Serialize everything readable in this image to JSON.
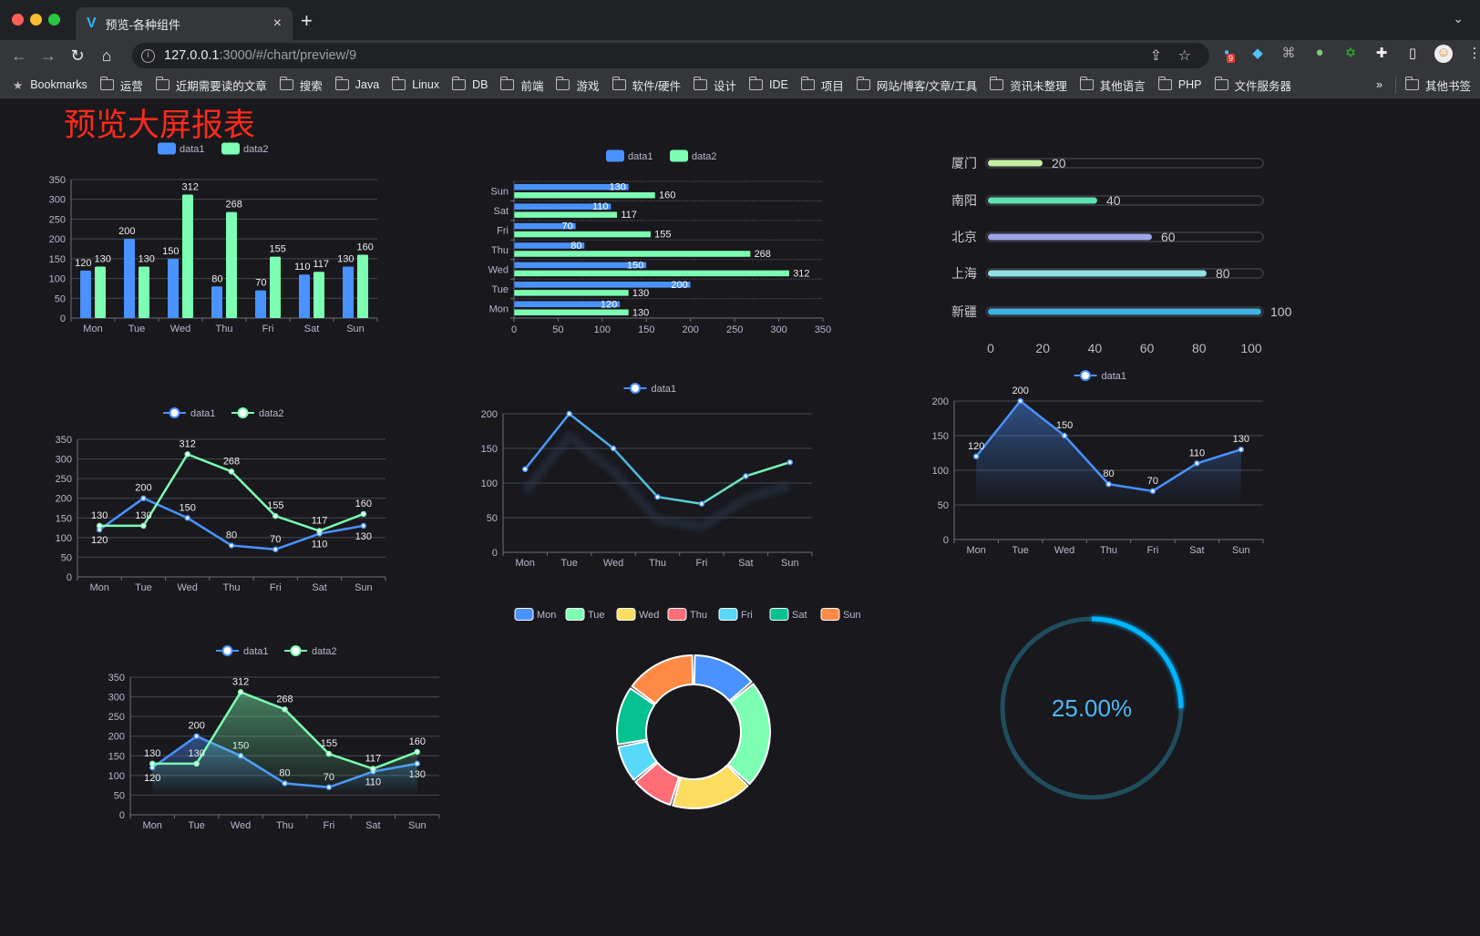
{
  "browser": {
    "tab_title": "预览-各种组件",
    "tab_close": "×",
    "new_tab": "+",
    "url_host": "127.0.0.1",
    "url_rest": ":3000/#/chart/preview/9",
    "extension_badge": "9",
    "bookmarks_label": "Bookmarks",
    "bookmarks": [
      "运营",
      "近期需要读的文章",
      "搜索",
      "Java",
      "Linux",
      "DB",
      "前端",
      "游戏",
      "软件/硬件",
      "设计",
      "IDE",
      "项目",
      "网站/博客/文章/工具",
      "资讯未整理",
      "其他语言",
      "PHP",
      "文件服务器"
    ],
    "overflow": "»",
    "other_bookmarks": "其他书签"
  },
  "page": {
    "title": "预览大屏报表"
  },
  "colors": {
    "data1": "#4992ff",
    "data2": "#7cffb2",
    "title": "#ff2a1a",
    "gauge": "#00b4ff"
  },
  "chart_data": [
    {
      "type": "bar",
      "categories": [
        "Mon",
        "Tue",
        "Wed",
        "Thu",
        "Fri",
        "Sat",
        "Sun"
      ],
      "ylim": [
        0,
        350
      ],
      "yticks": [
        0,
        50,
        100,
        150,
        200,
        250,
        300,
        350
      ],
      "legend": "top-center",
      "grid": true,
      "series": [
        {
          "name": "data1",
          "values": [
            120,
            200,
            150,
            80,
            70,
            110,
            130
          ]
        },
        {
          "name": "data2",
          "values": [
            130,
            130,
            312,
            268,
            155,
            117,
            160
          ]
        }
      ]
    },
    {
      "type": "bar",
      "orientation": "horizontal",
      "categories": [
        "Mon",
        "Tue",
        "Wed",
        "Thu",
        "Fri",
        "Sat",
        "Sun"
      ],
      "xlim": [
        0,
        350
      ],
      "xticks": [
        0,
        50,
        100,
        150,
        200,
        250,
        300,
        350
      ],
      "legend": "top-center",
      "grid": true,
      "series": [
        {
          "name": "data1",
          "values": [
            120,
            200,
            150,
            80,
            70,
            110,
            130
          ]
        },
        {
          "name": "data2",
          "values": [
            130,
            130,
            312,
            268,
            155,
            117,
            160
          ]
        }
      ]
    },
    {
      "type": "bar",
      "style": "progress",
      "categories": [
        "厦门",
        "南阳",
        "北京",
        "上海",
        "新疆"
      ],
      "values": [
        20,
        40,
        60,
        80,
        100
      ],
      "xlim": [
        0,
        100
      ],
      "xticks": [
        0,
        20,
        40,
        60,
        80,
        100
      ],
      "colors": [
        "#c5f0a4",
        "#5ee0b0",
        "#9da5e8",
        "#90e0e8",
        "#3fb1e3"
      ]
    },
    {
      "type": "line",
      "categories": [
        "Mon",
        "Tue",
        "Wed",
        "Thu",
        "Fri",
        "Sat",
        "Sun"
      ],
      "ylim": [
        0,
        350
      ],
      "yticks": [
        0,
        50,
        100,
        150,
        200,
        250,
        300,
        350
      ],
      "legend": "top-center",
      "labels": true,
      "series": [
        {
          "name": "data1",
          "values": [
            120,
            200,
            150,
            80,
            70,
            110,
            130
          ]
        },
        {
          "name": "data2",
          "values": [
            130,
            130,
            312,
            268,
            155,
            117,
            160
          ]
        }
      ]
    },
    {
      "type": "line",
      "categories": [
        "Mon",
        "Tue",
        "Wed",
        "Thu",
        "Fri",
        "Sat",
        "Sun"
      ],
      "ylim": [
        0,
        200
      ],
      "yticks": [
        0,
        50,
        100,
        150,
        200
      ],
      "legend": "top-center",
      "labels": false,
      "gradient_line": true,
      "series": [
        {
          "name": "data1",
          "values": [
            120,
            200,
            150,
            80,
            70,
            110,
            130
          ]
        }
      ]
    },
    {
      "type": "area",
      "categories": [
        "Mon",
        "Tue",
        "Wed",
        "Thu",
        "Fri",
        "Sat",
        "Sun"
      ],
      "ylim": [
        0,
        200
      ],
      "yticks": [
        0,
        50,
        100,
        150,
        200
      ],
      "legend": "top-center",
      "labels": true,
      "series": [
        {
          "name": "data1",
          "values": [
            120,
            200,
            150,
            80,
            70,
            110,
            130
          ]
        }
      ]
    },
    {
      "type": "area",
      "categories": [
        "Mon",
        "Tue",
        "Wed",
        "Thu",
        "Fri",
        "Sat",
        "Sun"
      ],
      "ylim": [
        0,
        350
      ],
      "yticks": [
        0,
        50,
        100,
        150,
        200,
        250,
        300,
        350
      ],
      "legend": "top-center",
      "labels": true,
      "series": [
        {
          "name": "data1",
          "values": [
            120,
            200,
            150,
            80,
            70,
            110,
            130
          ]
        },
        {
          "name": "data2",
          "values": [
            130,
            130,
            312,
            268,
            155,
            117,
            160
          ]
        }
      ]
    },
    {
      "type": "pie",
      "style": "donut",
      "categories": [
        "Mon",
        "Tue",
        "Wed",
        "Thu",
        "Fri",
        "Sat",
        "Sun"
      ],
      "values": [
        120,
        200,
        150,
        80,
        70,
        110,
        130
      ],
      "legend": "top-center",
      "colors": [
        "#4992ff",
        "#7cffb2",
        "#fddd60",
        "#ff6e76",
        "#58d9f9",
        "#05c091",
        "#ff8a45"
      ]
    },
    {
      "type": "gauge",
      "value": 0.25,
      "label": "25.00%"
    }
  ]
}
